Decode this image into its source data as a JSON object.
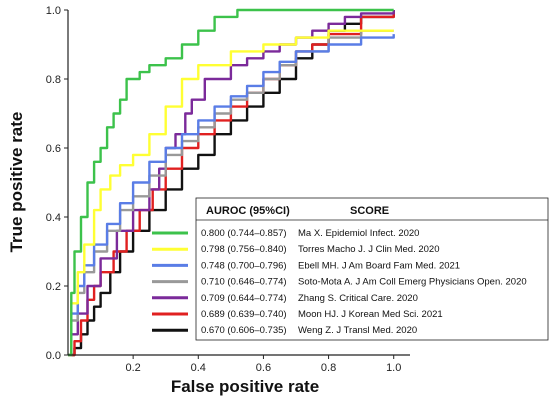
{
  "chart_data": {
    "type": "line",
    "xlabel": "False positive rate",
    "ylabel": "True  positive rate",
    "xlim": [
      0,
      1.05
    ],
    "ylim": [
      0,
      1.0
    ],
    "x_ticks": [
      "0.2",
      "0.4",
      "0.6",
      "0.8",
      "1.0"
    ],
    "y_ticks": [
      "0.0",
      "0.2",
      "0.4",
      "0.6",
      "0.8",
      "1.0"
    ],
    "grid": false,
    "legend": {
      "position": "bottom-right",
      "header_auroc": "AUROC (95%CI)",
      "header_score": "SCORE"
    },
    "series": [
      {
        "name": "Ma X. Epidemiol Infect. 2020",
        "auroc": "0.800 (0.744–0.857)",
        "color": "#3cc24b",
        "points": [
          [
            0,
            0
          ],
          [
            0.01,
            0.18
          ],
          [
            0.02,
            0.3
          ],
          [
            0.04,
            0.4
          ],
          [
            0.06,
            0.5
          ],
          [
            0.08,
            0.56
          ],
          [
            0.1,
            0.6
          ],
          [
            0.12,
            0.66
          ],
          [
            0.14,
            0.7
          ],
          [
            0.16,
            0.74
          ],
          [
            0.18,
            0.8
          ],
          [
            0.2,
            0.8
          ],
          [
            0.22,
            0.82
          ],
          [
            0.25,
            0.84
          ],
          [
            0.3,
            0.86
          ],
          [
            0.35,
            0.9
          ],
          [
            0.4,
            0.94
          ],
          [
            0.45,
            0.98
          ],
          [
            0.52,
            1.0
          ],
          [
            1.0,
            1.0
          ]
        ]
      },
      {
        "name": "Torres Macho J. J Clin Med. 2020",
        "auroc": "0.798 (0.756–0.840)",
        "color": "#ffff33",
        "points": [
          [
            0,
            0
          ],
          [
            0.01,
            0.15
          ],
          [
            0.03,
            0.24
          ],
          [
            0.05,
            0.32
          ],
          [
            0.08,
            0.42
          ],
          [
            0.1,
            0.48
          ],
          [
            0.13,
            0.52
          ],
          [
            0.16,
            0.55
          ],
          [
            0.2,
            0.58
          ],
          [
            0.25,
            0.64
          ],
          [
            0.3,
            0.72
          ],
          [
            0.35,
            0.8
          ],
          [
            0.4,
            0.84
          ],
          [
            0.5,
            0.88
          ],
          [
            0.6,
            0.9
          ],
          [
            0.7,
            0.92
          ],
          [
            0.8,
            0.94
          ],
          [
            0.9,
            0.94
          ],
          [
            1.0,
            0.94
          ]
        ]
      },
      {
        "name": "Ebell MH. J Am Board Fam Med. 2021",
        "auroc": "0.748 (0.700–0.796)",
        "color": "#5a7de6",
        "points": [
          [
            0,
            0
          ],
          [
            0.01,
            0.12
          ],
          [
            0.03,
            0.2
          ],
          [
            0.05,
            0.26
          ],
          [
            0.08,
            0.32
          ],
          [
            0.12,
            0.38
          ],
          [
            0.16,
            0.44
          ],
          [
            0.2,
            0.5
          ],
          [
            0.25,
            0.56
          ],
          [
            0.3,
            0.6
          ],
          [
            0.35,
            0.64
          ],
          [
            0.4,
            0.68
          ],
          [
            0.45,
            0.72
          ],
          [
            0.5,
            0.75
          ],
          [
            0.55,
            0.78
          ],
          [
            0.6,
            0.82
          ],
          [
            0.65,
            0.85
          ],
          [
            0.7,
            0.88
          ],
          [
            0.8,
            0.9
          ],
          [
            0.9,
            0.92
          ],
          [
            1.0,
            0.93
          ]
        ]
      },
      {
        "name": "Soto-Mota A. J Am Coll Emerg Physicians Open. 2020",
        "auroc": "0.710 (0.646–0.774)",
        "color": "#999999",
        "points": [
          [
            0,
            0
          ],
          [
            0.01,
            0.1
          ],
          [
            0.03,
            0.18
          ],
          [
            0.05,
            0.24
          ],
          [
            0.08,
            0.3
          ],
          [
            0.12,
            0.36
          ],
          [
            0.16,
            0.42
          ],
          [
            0.2,
            0.46
          ],
          [
            0.25,
            0.52
          ],
          [
            0.3,
            0.58
          ],
          [
            0.35,
            0.62
          ],
          [
            0.4,
            0.66
          ],
          [
            0.45,
            0.7
          ],
          [
            0.5,
            0.74
          ],
          [
            0.55,
            0.76
          ],
          [
            0.6,
            0.8
          ],
          [
            0.65,
            0.84
          ],
          [
            0.7,
            0.88
          ],
          [
            0.8,
            0.92
          ],
          [
            0.9,
            0.94
          ],
          [
            1.0,
            0.94
          ]
        ]
      },
      {
        "name": "Zhang S. Critical Care. 2020",
        "auroc": "0.709 (0.644–0.774)",
        "color": "#7b2a9a",
        "points": [
          [
            0,
            0
          ],
          [
            0.01,
            0.06
          ],
          [
            0.03,
            0.12
          ],
          [
            0.06,
            0.2
          ],
          [
            0.1,
            0.28
          ],
          [
            0.15,
            0.36
          ],
          [
            0.2,
            0.42
          ],
          [
            0.25,
            0.48
          ],
          [
            0.28,
            0.54
          ],
          [
            0.3,
            0.6
          ],
          [
            0.33,
            0.64
          ],
          [
            0.36,
            0.7
          ],
          [
            0.38,
            0.74
          ],
          [
            0.4,
            0.74
          ],
          [
            0.42,
            0.8
          ],
          [
            0.46,
            0.8
          ],
          [
            0.5,
            0.84
          ],
          [
            0.55,
            0.86
          ],
          [
            0.6,
            0.88
          ],
          [
            0.65,
            0.9
          ],
          [
            0.7,
            0.92
          ],
          [
            0.75,
            0.94
          ],
          [
            0.8,
            0.96
          ],
          [
            0.85,
            0.98
          ],
          [
            0.9,
            0.99
          ],
          [
            1.0,
            1.0
          ]
        ]
      },
      {
        "name": "Moon HJ. J Korean Med Sci. 2021",
        "auroc": "0.689 (0.639–0.740)",
        "color": "#e02020",
        "points": [
          [
            0,
            0
          ],
          [
            0.02,
            0.04
          ],
          [
            0.04,
            0.1
          ],
          [
            0.06,
            0.16
          ],
          [
            0.08,
            0.2
          ],
          [
            0.1,
            0.24
          ],
          [
            0.14,
            0.3
          ],
          [
            0.18,
            0.36
          ],
          [
            0.22,
            0.42
          ],
          [
            0.26,
            0.48
          ],
          [
            0.3,
            0.54
          ],
          [
            0.35,
            0.6
          ],
          [
            0.4,
            0.64
          ],
          [
            0.45,
            0.68
          ],
          [
            0.5,
            0.72
          ],
          [
            0.55,
            0.76
          ],
          [
            0.6,
            0.8
          ],
          [
            0.65,
            0.84
          ],
          [
            0.7,
            0.88
          ],
          [
            0.75,
            0.9
          ],
          [
            0.8,
            0.93
          ],
          [
            0.9,
            0.98
          ],
          [
            1.0,
            1.0
          ]
        ]
      },
      {
        "name": "Weng Z. J Transl Med. 2020",
        "auroc": "0.670 (0.606–0.735)",
        "color": "#111111",
        "points": [
          [
            0,
            0
          ],
          [
            0.02,
            0.02
          ],
          [
            0.04,
            0.06
          ],
          [
            0.06,
            0.1
          ],
          [
            0.08,
            0.14
          ],
          [
            0.1,
            0.18
          ],
          [
            0.13,
            0.24
          ],
          [
            0.16,
            0.3
          ],
          [
            0.2,
            0.36
          ],
          [
            0.25,
            0.42
          ],
          [
            0.3,
            0.48
          ],
          [
            0.35,
            0.54
          ],
          [
            0.4,
            0.58
          ],
          [
            0.45,
            0.64
          ],
          [
            0.5,
            0.68
          ],
          [
            0.55,
            0.72
          ],
          [
            0.6,
            0.76
          ],
          [
            0.65,
            0.8
          ],
          [
            0.7,
            0.86
          ],
          [
            0.75,
            0.9
          ],
          [
            0.8,
            0.94
          ],
          [
            0.85,
            0.96
          ],
          [
            0.9,
            0.98
          ],
          [
            1.0,
            1.0
          ]
        ]
      }
    ]
  }
}
